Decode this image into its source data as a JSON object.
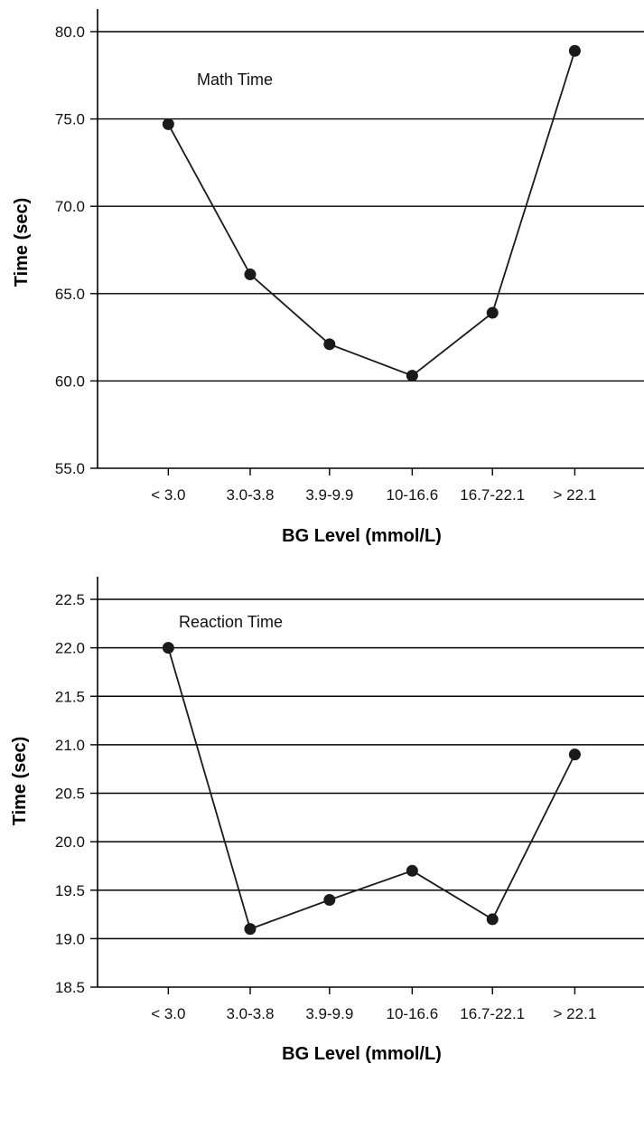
{
  "chart_data": [
    {
      "type": "line",
      "annotation": "Math Time",
      "xlabel": "BG Level (mmol/L)",
      "ylabel": "Time (sec)",
      "categories": [
        "< 3.0",
        "3.0-3.8",
        "3.9-9.9",
        "10-16.6",
        "16.7-22.1",
        "> 22.1"
      ],
      "values": [
        74.7,
        66.1,
        62.1,
        60.3,
        63.9,
        78.9
      ],
      "ylim": [
        55.0,
        80.0
      ],
      "yticks": [
        "55.0",
        "60.0",
        "65.0",
        "70.0",
        "75.0",
        "80.0"
      ],
      "grid": true,
      "color": "#1a1a1a"
    },
    {
      "type": "line",
      "annotation": "Reaction Time",
      "xlabel": "BG Level (mmol/L)",
      "ylabel": "Time (sec)",
      "categories": [
        "< 3.0",
        "3.0-3.8",
        "3.9-9.9",
        "10-16.6",
        "16.7-22.1",
        "> 22.1"
      ],
      "values": [
        22.0,
        19.1,
        19.4,
        19.7,
        19.2,
        20.9
      ],
      "ylim": [
        18.5,
        22.5
      ],
      "yticks": [
        "18.5",
        "19.0",
        "19.5",
        "20.0",
        "20.5",
        "21.0",
        "21.5",
        "22.0",
        "22.5"
      ],
      "grid": true,
      "color": "#1a1a1a"
    }
  ]
}
